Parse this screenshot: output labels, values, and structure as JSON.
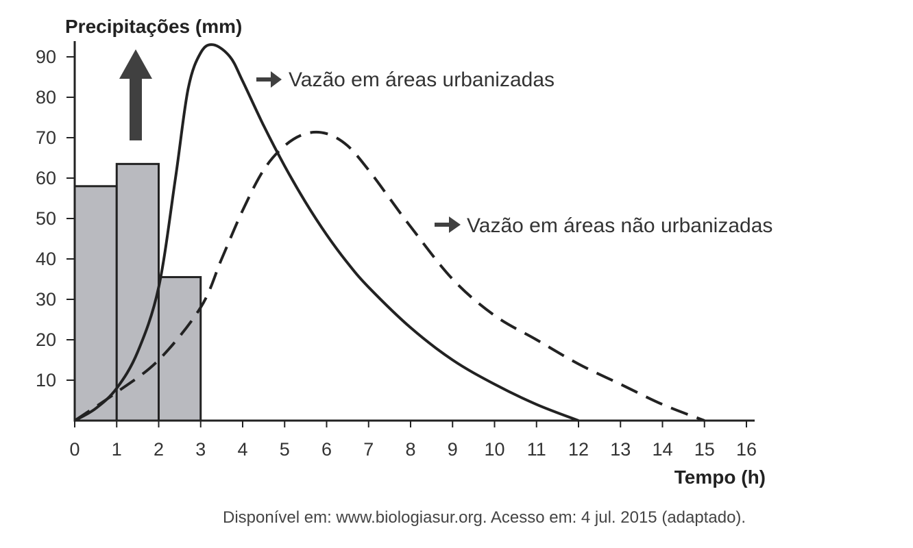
{
  "chart_data": {
    "type": "bar",
    "ylabel": "Precipitações (mm)",
    "xlabel": "Tempo (h)",
    "xlim": [
      0,
      16
    ],
    "ylim": [
      0,
      90
    ],
    "x_ticks": [
      0,
      1,
      2,
      3,
      4,
      5,
      6,
      7,
      8,
      9,
      10,
      11,
      12,
      13,
      14,
      15,
      16
    ],
    "y_ticks": [
      10,
      20,
      30,
      40,
      50,
      60,
      70,
      80,
      90
    ],
    "bars": [
      {
        "x_start": 0,
        "x_end": 1,
        "value": 58
      },
      {
        "x_start": 1,
        "x_end": 2,
        "value": 63.5
      },
      {
        "x_start": 2,
        "x_end": 3,
        "value": 35.5
      }
    ],
    "series": [
      {
        "name": "Vazão em áreas urbanizadas",
        "style": "solid",
        "points": [
          [
            0,
            0
          ],
          [
            0.5,
            3
          ],
          [
            1,
            8
          ],
          [
            1.5,
            17
          ],
          [
            2,
            33
          ],
          [
            2.4,
            60
          ],
          [
            2.7,
            82
          ],
          [
            3,
            91
          ],
          [
            3.3,
            93
          ],
          [
            3.7,
            90
          ],
          [
            4,
            84
          ],
          [
            4.5,
            73
          ],
          [
            5,
            63
          ],
          [
            5.5,
            54
          ],
          [
            6,
            46
          ],
          [
            6.5,
            39
          ],
          [
            7,
            33
          ],
          [
            8,
            23
          ],
          [
            9,
            15
          ],
          [
            10,
            9
          ],
          [
            11,
            4
          ],
          [
            12,
            0
          ]
        ]
      },
      {
        "name": "Vazão em áreas não urbanizadas",
        "style": "dashed",
        "points": [
          [
            0,
            0
          ],
          [
            1,
            7
          ],
          [
            2,
            15
          ],
          [
            3,
            28
          ],
          [
            3.5,
            40
          ],
          [
            4,
            52
          ],
          [
            4.5,
            62
          ],
          [
            5,
            68
          ],
          [
            5.5,
            71
          ],
          [
            6,
            71
          ],
          [
            6.5,
            68
          ],
          [
            7,
            62
          ],
          [
            7.5,
            55
          ],
          [
            8,
            48
          ],
          [
            9,
            35
          ],
          [
            10,
            26
          ],
          [
            11,
            20
          ],
          [
            12,
            14
          ],
          [
            13,
            9
          ],
          [
            14,
            4
          ],
          [
            15,
            0
          ]
        ]
      }
    ],
    "colors": {
      "bar_fill": "#b9babf",
      "bar_stroke": "#222222",
      "line": "#222222",
      "arrow": "#404040"
    }
  },
  "source": "Disponível em: www.biologiasur.org. Acesso em: 4 jul. 2015 (adaptado)."
}
